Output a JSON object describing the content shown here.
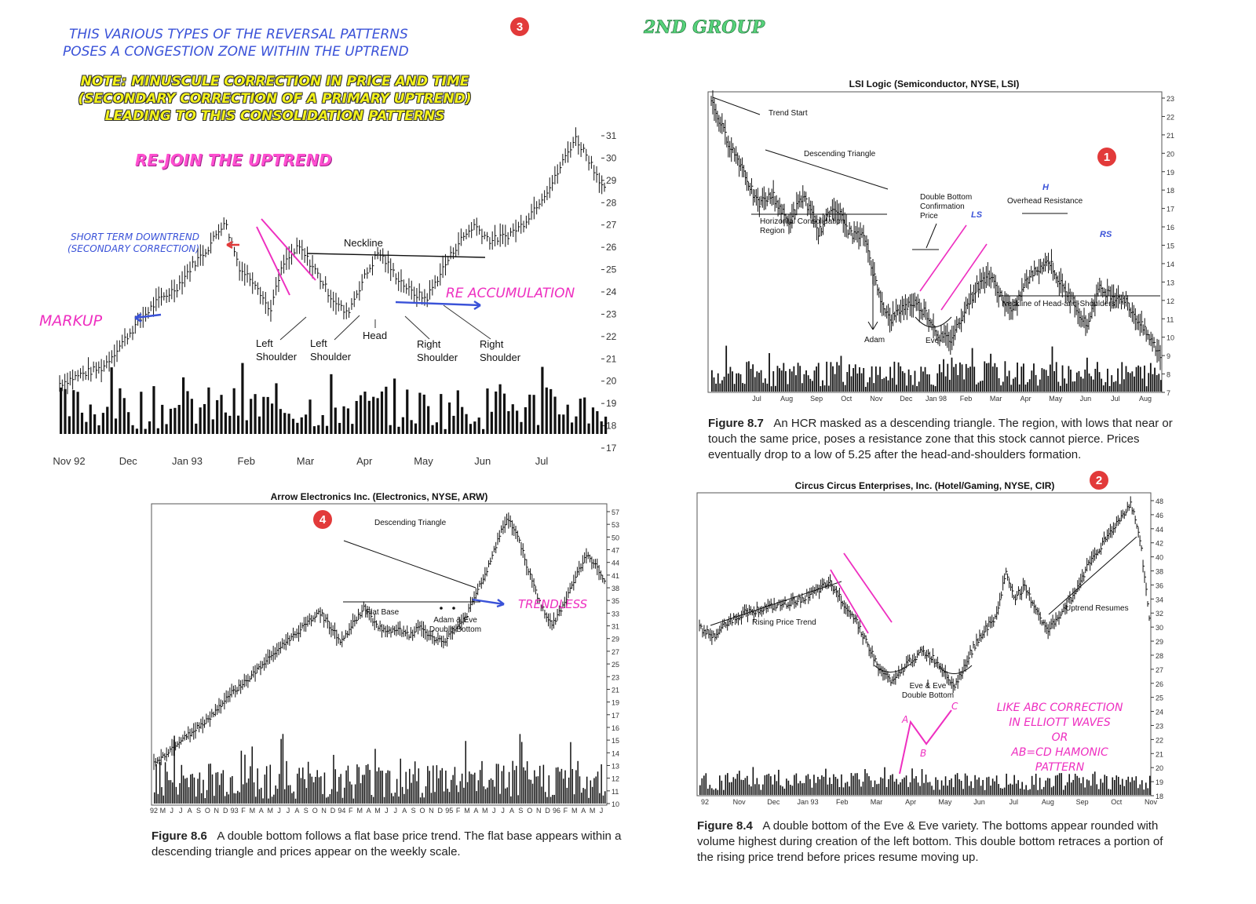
{
  "header": {
    "intro_line1": "THIS VARIOUS TYPES OF THE REVERSAL PATTERNS",
    "intro_line2": "POSES A CONGESTION ZONE WITHIN  THE UPTREND",
    "group_label": "2ND GROUP",
    "note_line1": "NOTE: MINUSCULE CORRECTION IN PRICE AND TIME",
    "note_line2": "(SECONDARY CORRECTION OF A PRIMARY UPTREND)",
    "note_line3": "LEADING TO THIS CONSOLIDATION PATTERNS",
    "badge_3": "3",
    "colors": {
      "blue": "#3a52d8",
      "pink": "#ee2fc0",
      "yellow": "#f3f21a",
      "badge": "#e23a3a",
      "neckline_pink": "#ee2fc0"
    }
  },
  "chart_data": [
    {
      "id": "hs-chart",
      "type": "bar",
      "title": "",
      "ylim": [
        17,
        31
      ],
      "y_ticks": [
        "31",
        "30",
        "29",
        "28",
        "27",
        "26",
        "25",
        "24",
        "23",
        "22",
        "21",
        "20",
        "19",
        "18",
        "17"
      ],
      "x_labels": [
        "Nov 92",
        "Dec",
        "Jan 93",
        "Feb",
        "Mar",
        "Apr",
        "May",
        "Jun",
        "Jul"
      ],
      "price_path": [
        [
          0,
          19.9
        ],
        [
          8,
          20.3
        ],
        [
          16,
          20.6
        ],
        [
          22,
          21.5
        ],
        [
          30,
          22.7
        ],
        [
          36,
          23.5
        ],
        [
          44,
          24.2
        ],
        [
          50,
          25.2
        ],
        [
          56,
          26.0
        ],
        [
          62,
          27.2
        ],
        [
          68,
          25.0
        ],
        [
          74,
          24.4
        ],
        [
          79,
          23.1
        ],
        [
          84,
          25.2
        ],
        [
          90,
          26.0
        ],
        [
          96,
          25.0
        ],
        [
          102,
          23.8
        ],
        [
          108,
          23.0
        ],
        [
          114,
          24.5
        ],
        [
          120,
          25.8
        ],
        [
          126,
          24.8
        ],
        [
          132,
          24.0
        ],
        [
          138,
          23.7
        ],
        [
          144,
          25.0
        ],
        [
          150,
          26.2
        ],
        [
          156,
          27.0
        ],
        [
          162,
          26.3
        ],
        [
          168,
          26.5
        ],
        [
          174,
          27.0
        ],
        [
          180,
          28.0
        ],
        [
          186,
          29.0
        ],
        [
          190,
          30.0
        ],
        [
          194,
          30.9
        ],
        [
          198,
          30.2
        ],
        [
          202,
          29.3
        ],
        [
          205,
          28.6
        ]
      ],
      "annotations": [
        "Neckline",
        "Left Shoulder",
        "Left Shoulder",
        "Head",
        "Right Shoulder",
        "Right Shoulder"
      ],
      "handwritten": {
        "rejoin": "RE-JOIN THE UPTREND",
        "short_term_line1": "SHORT TERM DOWNTREND",
        "short_term_line2": "(SECONDARY CORRECTION)",
        "markup": "MARKUP",
        "re_accumulation": "RE ACCUMULATION"
      }
    },
    {
      "id": "lsi-chart",
      "type": "bar",
      "title": "LSI Logic (Semiconductor, NYSE, LSI)",
      "ylim": [
        7,
        23
      ],
      "y_ticks": [
        "23",
        "22",
        "21",
        "20",
        "19",
        "18",
        "17",
        "16",
        "15",
        "14",
        "13",
        "12",
        "11",
        "10",
        "9",
        "8",
        "7"
      ],
      "x_labels": [
        "Jul",
        "Aug",
        "Sep",
        "Oct",
        "Nov",
        "Dec",
        "Jan 98",
        "Feb",
        "Mar",
        "Apr",
        "May",
        "Jun",
        "Jul",
        "Aug"
      ],
      "price_path": [
        [
          0,
          22.5
        ],
        [
          5,
          20.5
        ],
        [
          10,
          19.0
        ],
        [
          15,
          17.0
        ],
        [
          20,
          17.5
        ],
        [
          25,
          16.0
        ],
        [
          30,
          17.5
        ],
        [
          35,
          15.5
        ],
        [
          40,
          17.0
        ],
        [
          45,
          15.5
        ],
        [
          50,
          15.2
        ],
        [
          54,
          12.5
        ],
        [
          58,
          10.8
        ],
        [
          62,
          11.5
        ],
        [
          66,
          11.8
        ],
        [
          70,
          11.2
        ],
        [
          74,
          10.0
        ],
        [
          78,
          9.8
        ],
        [
          82,
          11.3
        ],
        [
          86,
          12.5
        ],
        [
          90,
          13.3
        ],
        [
          94,
          12.2
        ],
        [
          98,
          11.2
        ],
        [
          102,
          12.8
        ],
        [
          106,
          13.6
        ],
        [
          110,
          14.0
        ],
        [
          114,
          12.6
        ],
        [
          118,
          11.8
        ],
        [
          122,
          10.5
        ],
        [
          126,
          12.5
        ],
        [
          130,
          12.2
        ],
        [
          134,
          12.0
        ],
        [
          138,
          11.0
        ],
        [
          142,
          10.0
        ],
        [
          146,
          9.0
        ]
      ],
      "annotations": [
        "Trend Start",
        "Descending Triangle",
        "Horizontal Consolidation Region",
        "Double Bottom Confirmation Price",
        "LS",
        "Overhead Resistance",
        "H",
        "RS",
        "Neckline of Head-and-Shoulders",
        "Adam",
        "Eve"
      ],
      "badge": "1"
    },
    {
      "id": "arrow-chart",
      "type": "bar",
      "title": "Arrow Electronics Inc. (Electronics, NYSE, ARW)",
      "ylim": [
        10,
        57
      ],
      "y_ticks": [
        "57",
        "53",
        "50",
        "47",
        "44",
        "41",
        "38",
        "35",
        "33",
        "31",
        "29",
        "27",
        "25",
        "23",
        "21",
        "19",
        "17",
        "16",
        "15",
        "14",
        "13",
        "12",
        "11",
        "10"
      ],
      "x_labels": [
        "92",
        "M",
        "J",
        "J",
        "A",
        "S",
        "O",
        "N",
        "D",
        "93",
        "F",
        "M",
        "A",
        "M",
        "J",
        "J",
        "A",
        "S",
        "O",
        "N",
        "D",
        "94",
        "F",
        "M",
        "A",
        "M",
        "J",
        "J",
        "A",
        "S",
        "O",
        "N",
        "D",
        "95",
        "F",
        "M",
        "A",
        "M",
        "J",
        "J",
        "A",
        "S",
        "O",
        "N",
        "D",
        "96",
        "F",
        "M",
        "A",
        "M",
        "J"
      ],
      "price_path": [
        [
          0,
          16.5
        ],
        [
          10,
          19.0
        ],
        [
          20,
          21.5
        ],
        [
          30,
          24.0
        ],
        [
          40,
          27.5
        ],
        [
          50,
          30.0
        ],
        [
          60,
          33.0
        ],
        [
          70,
          36.0
        ],
        [
          80,
          38.5
        ],
        [
          88,
          41.0
        ],
        [
          95,
          38.0
        ],
        [
          100,
          36.0
        ],
        [
          106,
          39.0
        ],
        [
          112,
          41.5
        ],
        [
          118,
          39.0
        ],
        [
          124,
          37.5
        ],
        [
          130,
          38.0
        ],
        [
          136,
          37.0
        ],
        [
          142,
          38.5
        ],
        [
          148,
          36.5
        ],
        [
          154,
          36.0
        ],
        [
          160,
          38.0
        ],
        [
          166,
          40.0
        ],
        [
          172,
          44.0
        ],
        [
          178,
          48.0
        ],
        [
          184,
          53.0
        ],
        [
          188,
          56.0
        ],
        [
          194,
          53.0
        ],
        [
          200,
          47.0
        ],
        [
          206,
          42.0
        ],
        [
          212,
          38.5
        ],
        [
          218,
          42.0
        ],
        [
          224,
          46.0
        ],
        [
          230,
          50.0
        ],
        [
          236,
          48.0
        ],
        [
          240,
          46.0
        ]
      ],
      "annotations": [
        "Descending Triangle",
        "Flat Base",
        "Adam & Eve Double Bottom"
      ],
      "handwritten": {
        "trendless": "TRENDLESS"
      },
      "badge": "4"
    },
    {
      "id": "circus-chart",
      "type": "bar",
      "title": "Circus Circus Enterprises, Inc. (Hotel/Gaming, NYSE, CIR)",
      "ylim": [
        18,
        48
      ],
      "y_ticks": [
        "48",
        "46",
        "44",
        "42",
        "40",
        "38",
        "36",
        "34",
        "32",
        "30",
        "29",
        "28",
        "27",
        "26",
        "25",
        "24",
        "23",
        "22",
        "21",
        "20",
        "19",
        "18"
      ],
      "x_labels": [
        "92",
        "Nov",
        "Dec",
        "Jan 93",
        "Feb",
        "Mar",
        "Apr",
        "May",
        "Jun",
        "Jul",
        "Aug",
        "Sep",
        "Oct",
        "Nov"
      ],
      "price_path": [
        [
          0,
          35.0
        ],
        [
          6,
          34.0
        ],
        [
          12,
          35.5
        ],
        [
          20,
          36.5
        ],
        [
          30,
          37.0
        ],
        [
          40,
          37.5
        ],
        [
          50,
          38.5
        ],
        [
          56,
          39.5
        ],
        [
          62,
          37.5
        ],
        [
          68,
          35.5
        ],
        [
          74,
          32.5
        ],
        [
          78,
          30.5
        ],
        [
          84,
          29.5
        ],
        [
          90,
          31.5
        ],
        [
          96,
          32.5
        ],
        [
          100,
          32.0
        ],
        [
          106,
          30.5
        ],
        [
          110,
          29.0
        ],
        [
          116,
          32.0
        ],
        [
          122,
          34.5
        ],
        [
          128,
          36.0
        ],
        [
          132,
          40.5
        ],
        [
          136,
          38.0
        ],
        [
          140,
          39.0
        ],
        [
          146,
          36.5
        ],
        [
          150,
          34.5
        ],
        [
          156,
          36.5
        ],
        [
          162,
          38.5
        ],
        [
          168,
          41.5
        ],
        [
          174,
          43.5
        ],
        [
          180,
          45.5
        ],
        [
          186,
          47.5
        ],
        [
          190,
          44.0
        ],
        [
          194,
          36.0
        ]
      ],
      "annotations": [
        "Rising Price Trend",
        "Eve & Eve Double Bottom",
        "Uptrend Resumes"
      ],
      "handwritten": {
        "a": "A",
        "b": "B",
        "c": "C",
        "elliott_line1": "LIKE ABC CORRECTION",
        "elliott_line2": "IN ELLIOTT WAVES",
        "elliott_line3": "OR",
        "elliott_line4": "AB=CD HAMONIC",
        "elliott_line5": "PATTERN"
      },
      "badge": "2"
    }
  ],
  "captions": {
    "fig87_label": "Figure 8.7",
    "fig87_text": "An HCR masked as a descending triangle. The region, with lows that near or touch the same price, poses a resistance zone that this stock cannot pierce. Prices eventually drop to a low of 5.25 after the head-and-shoulders formation.",
    "fig86_label": "Figure 8.6",
    "fig86_text": "A double bottom follows a flat base price trend. The flat base appears within a descending triangle and prices appear on the weekly scale.",
    "fig84_label": "Figure 8.4",
    "fig84_text": "A double bottom of the Eve & Eve variety. The bottoms appear rounded with volume highest during creation of the left bottom. This double bottom retraces a portion of the rising price trend before prices resume moving up."
  }
}
